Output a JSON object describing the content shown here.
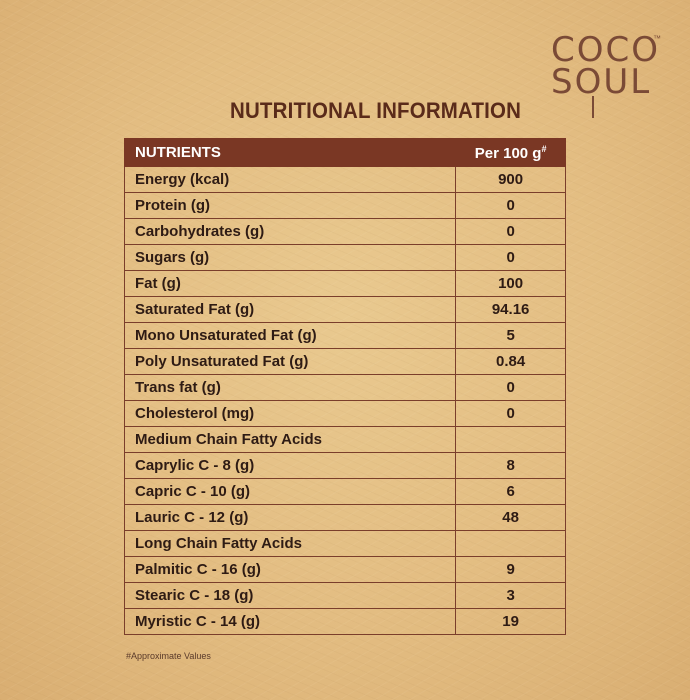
{
  "brand": {
    "line1": "COCO",
    "line2": "SOUL",
    "trademark": "™"
  },
  "title": "NUTRITIONAL INFORMATION",
  "table": {
    "header_nutrients": "NUTRIENTS",
    "header_per": "Per 100 g",
    "header_per_mark": "#",
    "rows": [
      {
        "name": "Energy (kcal)",
        "value": "900"
      },
      {
        "name": "Protein (g)",
        "value": "0"
      },
      {
        "name": "Carbohydrates (g)",
        "value": "0"
      },
      {
        "name": "Sugars (g)",
        "value": "0"
      },
      {
        "name": "Fat (g)",
        "value": "100"
      },
      {
        "name": "Saturated Fat (g)",
        "value": "94.16"
      },
      {
        "name": "Mono Unsaturated Fat (g)",
        "value": "5"
      },
      {
        "name": "Poly Unsaturated Fat (g)",
        "value": "0.84"
      },
      {
        "name": "Trans fat (g)",
        "value": "0"
      },
      {
        "name": "Cholesterol (mg)",
        "value": "0"
      },
      {
        "name": "Medium Chain Fatty Acids",
        "value": ""
      },
      {
        "name": "Caprylic C - 8 (g)",
        "value": "8"
      },
      {
        "name": "Capric C - 10 (g)",
        "value": "6"
      },
      {
        "name": "Lauric C - 12 (g)",
        "value": "48"
      },
      {
        "name": "Long Chain Fatty Acids",
        "value": ""
      },
      {
        "name": "Palmitic C - 16 (g)",
        "value": "9"
      },
      {
        "name": "Stearic C - 18 (g)",
        "value": "3"
      },
      {
        "name": "Myristic C - 14 (g)",
        "value": "19"
      }
    ]
  },
  "footnote": "#Approximate Values",
  "colors": {
    "header_bg": "#7a3724",
    "title": "#5a2b1a",
    "logo": "#7a4a36"
  }
}
